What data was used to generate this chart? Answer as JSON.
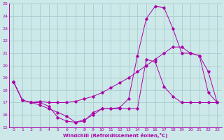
{
  "xlabel": "Windchill (Refroidissement éolien,°C)",
  "xlim": [
    -0.5,
    23.5
  ],
  "ylim": [
    15,
    25
  ],
  "xticks": [
    0,
    1,
    2,
    3,
    4,
    5,
    6,
    7,
    8,
    9,
    10,
    11,
    12,
    13,
    14,
    15,
    16,
    17,
    18,
    19,
    20,
    21,
    22,
    23
  ],
  "yticks": [
    15,
    16,
    17,
    18,
    19,
    20,
    21,
    22,
    23,
    24,
    25
  ],
  "background_color": "#cce8e8",
  "grid_color": "#aacccc",
  "line_color": "#aa00aa",
  "line1_x": [
    0,
    1,
    2,
    3,
    4,
    5,
    6,
    7,
    8,
    9,
    10,
    11,
    12,
    13,
    14,
    15,
    16,
    17,
    18,
    19,
    20,
    21,
    22,
    23
  ],
  "line1_y": [
    18.7,
    17.2,
    17.0,
    17.0,
    16.7,
    15.8,
    15.5,
    15.4,
    15.6,
    16.0,
    16.5,
    16.5,
    16.5,
    16.5,
    16.5,
    20.5,
    20.3,
    18.3,
    17.5,
    17.0,
    17.0,
    17.0,
    17.0,
    17.0
  ],
  "line2_x": [
    0,
    1,
    2,
    3,
    4,
    5,
    6,
    7,
    8,
    9,
    10,
    11,
    12,
    13,
    14,
    15,
    16,
    17,
    18,
    19,
    20,
    21,
    22,
    23
  ],
  "line2_y": [
    18.7,
    17.2,
    17.0,
    17.1,
    17.0,
    17.0,
    17.0,
    17.1,
    17.3,
    17.5,
    17.8,
    18.2,
    18.6,
    19.0,
    19.5,
    20.0,
    20.5,
    21.0,
    21.5,
    21.5,
    21.0,
    20.8,
    19.5,
    17.0
  ],
  "line3_x": [
    0,
    1,
    2,
    3,
    4,
    5,
    6,
    7,
    8,
    9,
    10,
    11,
    12,
    13,
    14,
    15,
    16,
    17,
    18,
    19,
    20,
    21,
    22,
    23
  ],
  "line3_y": [
    18.7,
    17.2,
    17.0,
    16.8,
    16.5,
    16.2,
    15.9,
    15.4,
    15.5,
    16.2,
    16.5,
    16.5,
    16.6,
    17.3,
    20.8,
    23.8,
    24.8,
    24.7,
    23.0,
    21.0,
    21.0,
    20.8,
    17.8,
    17.0
  ]
}
